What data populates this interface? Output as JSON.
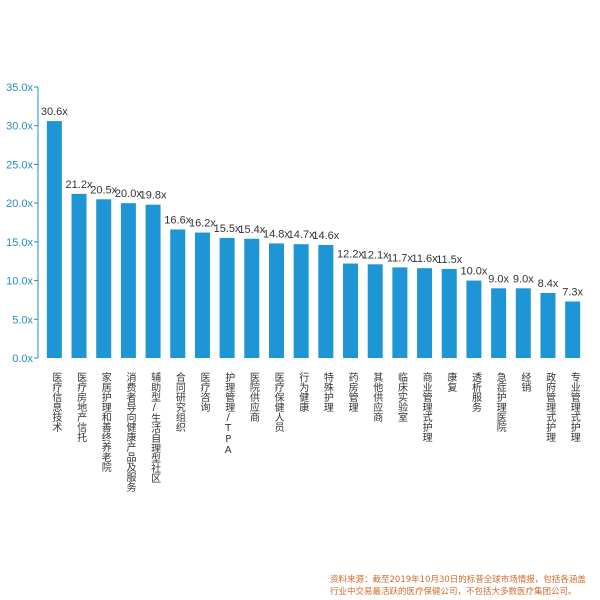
{
  "chart_data": {
    "type": "bar",
    "categories": [
      "医疗信息技术",
      "医疗房地产信托",
      "家居护理和善终养老院",
      "消费者导向健康产品及服务",
      "辅助型/生活自理型社区",
      "合同研究组织",
      "医疗咨询",
      "护理管理/TPA",
      "医院供应商",
      "医疗保健人员",
      "行为健康",
      "特殊护理",
      "药房管理",
      "其他供应商",
      "临床实验室",
      "商业管理式护理",
      "康复",
      "透析服务",
      "急症护理医院",
      "经销",
      "政府管理式护理",
      "专业管理式护理"
    ],
    "values": [
      30.6,
      21.2,
      20.5,
      20.0,
      19.8,
      16.6,
      16.2,
      15.5,
      15.4,
      14.8,
      14.7,
      14.6,
      12.2,
      12.1,
      11.7,
      11.6,
      11.5,
      10.0,
      9.0,
      9.0,
      8.4,
      7.3
    ],
    "value_labels": [
      "30.6x",
      "21.2x",
      "20.5x",
      "20.0x",
      "19.8x",
      "16.6x",
      "16.2x",
      "15.5x",
      "15.4x",
      "14.8x",
      "14.7x",
      "14.6x",
      "12.2x",
      "12.1x",
      "11.7x",
      "11.6x",
      "11.5x",
      "10.0x",
      "9.0x",
      "9.0x",
      "8.4x",
      "7.3x"
    ],
    "ylim": [
      0,
      35
    ],
    "yticks": [
      "0.0x",
      "5.0x",
      "10.0x",
      "15.0x",
      "20.0x",
      "25.0x",
      "30.0x",
      "35.0x"
    ],
    "grid": false,
    "bar_color": "#1e95d4",
    "axis_color": "#1f8fc4"
  },
  "source_note": "资料来源：截至2019年10月30日的标普全球市场情报，包括各涵盖行业中交易最活跃的医疗保健公司，不包括大多数医疗集团公司。"
}
